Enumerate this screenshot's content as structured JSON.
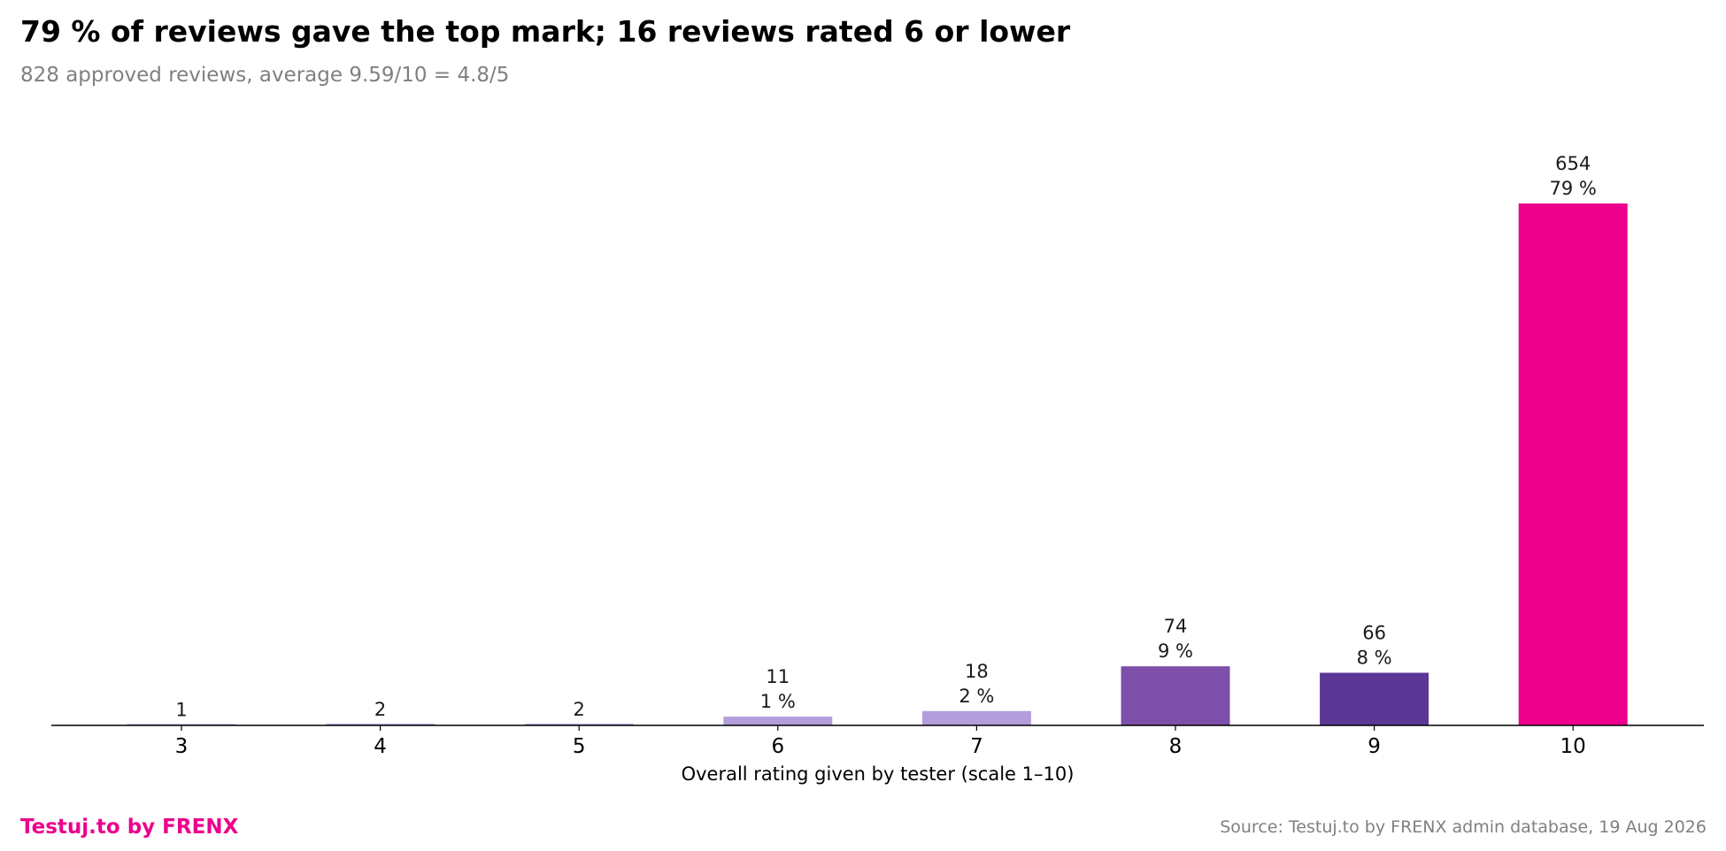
{
  "title": "79 % of reviews gave the top mark; 16 reviews rated 6 or lower",
  "subtitle": "828 approved reviews, average 9.59/10 = 4.8/5",
  "footer": {
    "brand": "Testuj.to by FRENX",
    "brand_color": "#ec008c",
    "source": "Source: Testuj.to by FRENX admin database, 19 Aug 2026"
  },
  "chart_data": {
    "type": "bar",
    "xlabel": "Overall rating given by tester (scale 1–10)",
    "ylabel": "",
    "categories": [
      "3",
      "4",
      "5",
      "6",
      "7",
      "8",
      "9",
      "10"
    ],
    "values": [
      1,
      2,
      2,
      11,
      18,
      74,
      66,
      654
    ],
    "value_labels": [
      "1",
      "2",
      "2",
      "11",
      "18",
      "74",
      "66",
      "654"
    ],
    "percent_labels": [
      "",
      "",
      "",
      "1 %",
      "2 %",
      "9 %",
      "8 %",
      "79 %"
    ],
    "colors": [
      "#b39ddb",
      "#b39ddb",
      "#b39ddb",
      "#b39ddb",
      "#b39ddb",
      "#7e4fa8",
      "#5b3795",
      "#ec008c"
    ],
    "ylim": [
      0,
      654
    ],
    "grid": false,
    "legend": "none"
  }
}
